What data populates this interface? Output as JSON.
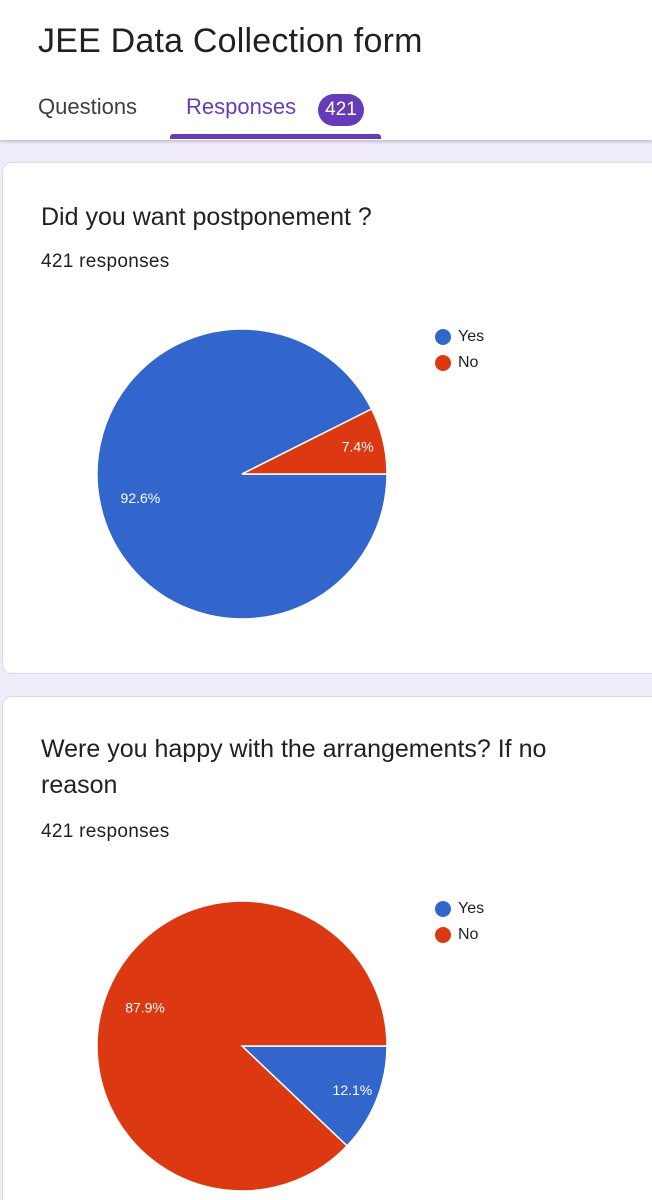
{
  "form": {
    "title": "JEE Data Collection form"
  },
  "tabs": {
    "questions_label": "Questions",
    "responses_label": "Responses",
    "responses_count": "421"
  },
  "colors": {
    "accent": "#673ab7",
    "yes": "#3366cc",
    "no": "#dc3912"
  },
  "questions": [
    {
      "title": "Did you want postponement ?",
      "responses": "421 responses",
      "legend": [
        "Yes",
        "No"
      ],
      "chart_data": {
        "type": "pie",
        "categories": [
          "Yes",
          "No"
        ],
        "values": [
          92.6,
          7.4
        ],
        "data_labels": [
          "92.6%",
          "7.4%"
        ],
        "colors": [
          "#3366cc",
          "#dc3912"
        ],
        "legend_position": "right"
      }
    },
    {
      "title": "Were you happy with the arrangements? If no reason",
      "responses": "421 responses",
      "legend": [
        "Yes",
        "No"
      ],
      "chart_data": {
        "type": "pie",
        "categories": [
          "Yes",
          "No"
        ],
        "values": [
          12.1,
          87.9
        ],
        "data_labels": [
          "12.1%",
          "87.9%"
        ],
        "colors": [
          "#3366cc",
          "#dc3912"
        ],
        "legend_position": "right"
      }
    }
  ]
}
